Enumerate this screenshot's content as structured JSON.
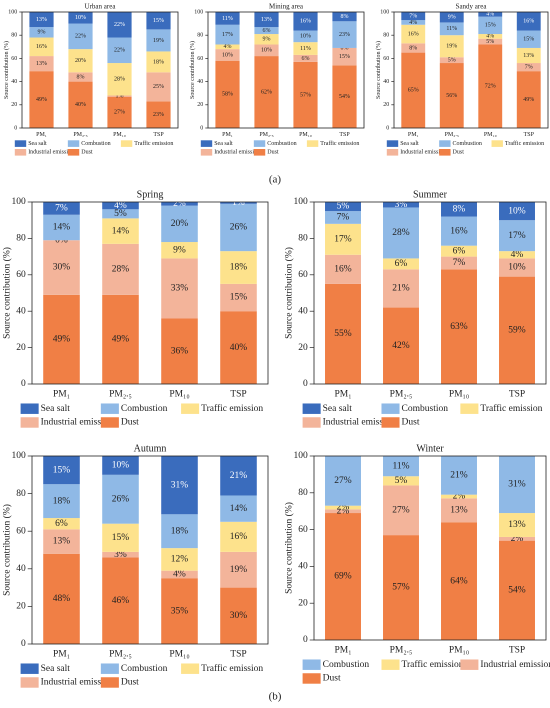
{
  "panel_labels": [
    "(a)",
    "(b)"
  ],
  "chart_data": [
    {
      "type": "bar",
      "stacked": true,
      "title": "Urban area",
      "ylabel": "Source contribution (%)",
      "categories": [
        "PM₁",
        "PM₂.₅",
        "PM₁₀",
        "TSP"
      ],
      "ylim": [
        0,
        100
      ],
      "yticks": [
        0,
        20,
        40,
        60,
        80,
        100
      ],
      "series": [
        {
          "name": "Dust",
          "color": "#f07f45",
          "values": [
            49,
            40,
            27,
            23
          ],
          "value_labels": [
            "49%",
            "40%",
            "27%",
            "23%"
          ]
        },
        {
          "name": "Industrial emission",
          "color": "#f3b49a",
          "values": [
            13,
            8,
            1,
            25
          ],
          "value_labels": [
            "13%",
            "8%",
            "1%",
            "25%"
          ]
        },
        {
          "name": "Traffic emission",
          "color": "#fde28c",
          "values": [
            16,
            20,
            28,
            18
          ],
          "value_labels": [
            "16%",
            "20%",
            "28%",
            "18%"
          ]
        },
        {
          "name": "Combustion",
          "color": "#8fb9e6",
          "values": [
            9,
            22,
            22,
            19
          ],
          "value_labels": [
            "9%",
            "22%",
            "22%",
            "19%"
          ]
        },
        {
          "name": "Sea salt",
          "color": "#3a6cbd",
          "values": [
            13,
            10,
            22,
            15
          ],
          "value_labels": [
            "13%",
            "10%",
            "22%",
            "15%"
          ]
        }
      ]
    },
    {
      "type": "bar",
      "stacked": true,
      "title": "Mining area",
      "ylabel": "Source contribution (%)",
      "categories": [
        "PM₁",
        "PM₂.₅",
        "PM₁₀",
        "TSP"
      ],
      "ylim": [
        0,
        100
      ],
      "yticks": [
        0,
        20,
        40,
        60,
        80,
        100
      ],
      "series": [
        {
          "name": "Dust",
          "color": "#f07f45",
          "values": [
            58,
            62,
            57,
            54
          ],
          "value_labels": [
            "58%",
            "62%",
            "57%",
            "54%"
          ]
        },
        {
          "name": "Industrial emission",
          "color": "#f3b49a",
          "values": [
            10,
            10,
            6,
            15
          ],
          "value_labels": [
            "10%",
            "10%",
            "6%",
            "15%"
          ]
        },
        {
          "name": "Traffic emission",
          "color": "#fde28c",
          "values": [
            4,
            9,
            11,
            0
          ],
          "value_labels": [
            "4%",
            "9%",
            "11%",
            "0%"
          ]
        },
        {
          "name": "Combustion",
          "color": "#8fb9e6",
          "values": [
            17,
            6,
            10,
            23
          ],
          "value_labels": [
            "17%",
            "6%",
            "10%",
            "23%"
          ]
        },
        {
          "name": "Sea salt",
          "color": "#3a6cbd",
          "values": [
            11,
            13,
            16,
            8
          ],
          "value_labels": [
            "11%",
            "13%",
            "16%",
            "8%"
          ]
        }
      ]
    },
    {
      "type": "bar",
      "stacked": true,
      "title": "Sandy area",
      "ylabel": "Source contribution (%)",
      "categories": [
        "PM₁",
        "PM₂.₅",
        "PM₁₀",
        "TSP"
      ],
      "ylim": [
        0,
        100
      ],
      "yticks": [
        0,
        20,
        40,
        60,
        80,
        100
      ],
      "series": [
        {
          "name": "Dust",
          "color": "#f07f45",
          "values": [
            65,
            56,
            72,
            49
          ],
          "value_labels": [
            "65%",
            "56%",
            "72%",
            "49%"
          ]
        },
        {
          "name": "Industrial emission",
          "color": "#f3b49a",
          "values": [
            8,
            5,
            5,
            7
          ],
          "value_labels": [
            "8%",
            "5%",
            "5%",
            "7%"
          ]
        },
        {
          "name": "Traffic emission",
          "color": "#fde28c",
          "values": [
            16,
            19,
            4,
            13
          ],
          "value_labels": [
            "16%",
            "19%",
            "4%",
            "13%"
          ]
        },
        {
          "name": "Combustion",
          "color": "#8fb9e6",
          "values": [
            4,
            11,
            15,
            15
          ],
          "value_labels": [
            "4%",
            "11%",
            "15%",
            "15%"
          ]
        },
        {
          "name": "Sea salt",
          "color": "#3a6cbd",
          "values": [
            7,
            9,
            4,
            16
          ],
          "value_labels": [
            "7%",
            "9%",
            "4%",
            "16%"
          ]
        }
      ]
    },
    {
      "type": "bar",
      "stacked": true,
      "title": "Spring",
      "ylabel": "Source contribution (%)",
      "categories": [
        "PM₁",
        "PM₂.₅",
        "PM₁₀",
        "TSP"
      ],
      "ylim": [
        0,
        100
      ],
      "yticks": [
        0,
        20,
        40,
        60,
        80,
        100
      ],
      "series": [
        {
          "name": "Dust",
          "color": "#f07f45",
          "values": [
            49,
            49,
            36,
            40
          ],
          "value_labels": [
            "49%",
            "49%",
            "36%",
            "40%"
          ]
        },
        {
          "name": "Industrial emission",
          "color": "#f3b49a",
          "values": [
            30,
            28,
            33,
            15
          ],
          "value_labels": [
            "30%",
            "28%",
            "33%",
            "15%"
          ]
        },
        {
          "name": "Traffic emission",
          "color": "#fde28c",
          "values": [
            0,
            14,
            9,
            18
          ],
          "value_labels": [
            "0%",
            "14%",
            "9%",
            "18%"
          ]
        },
        {
          "name": "Combustion",
          "color": "#8fb9e6",
          "values": [
            14,
            5,
            20,
            26
          ],
          "value_labels": [
            "14%",
            "5%",
            "20%",
            "26%"
          ]
        },
        {
          "name": "Sea salt",
          "color": "#3a6cbd",
          "values": [
            7,
            4,
            2,
            1
          ],
          "value_labels": [
            "7%",
            "4%",
            "2%",
            "1%"
          ]
        }
      ]
    },
    {
      "type": "bar",
      "stacked": true,
      "title": "Summer",
      "ylabel": "Source contribution (%)",
      "categories": [
        "PM₁",
        "PM₂.₅",
        "PM₁₀",
        "TSP"
      ],
      "ylim": [
        0,
        100
      ],
      "yticks": [
        0,
        20,
        40,
        60,
        80,
        100
      ],
      "series": [
        {
          "name": "Dust",
          "color": "#f07f45",
          "values": [
            55,
            42,
            63,
            59
          ],
          "value_labels": [
            "55%",
            "42%",
            "63%",
            "59%"
          ]
        },
        {
          "name": "Industrial emission",
          "color": "#f3b49a",
          "values": [
            16,
            21,
            7,
            10
          ],
          "value_labels": [
            "16%",
            "21%",
            "7%",
            "10%"
          ]
        },
        {
          "name": "Traffic emission",
          "color": "#fde28c",
          "values": [
            17,
            6,
            6,
            4
          ],
          "value_labels": [
            "17%",
            "6%",
            "6%",
            "4%"
          ]
        },
        {
          "name": "Combustion",
          "color": "#8fb9e6",
          "values": [
            7,
            28,
            16,
            17
          ],
          "value_labels": [
            "7%",
            "28%",
            "16%",
            "17%"
          ]
        },
        {
          "name": "Sea salt",
          "color": "#3a6cbd",
          "values": [
            5,
            3,
            8,
            10
          ],
          "value_labels": [
            "5%",
            "3%",
            "8%",
            "10%"
          ]
        }
      ]
    },
    {
      "type": "bar",
      "stacked": true,
      "title": "Autumn",
      "ylabel": "Source contribution (%)",
      "categories": [
        "PM₁",
        "PM₂.₅",
        "PM₁₀",
        "TSP"
      ],
      "ylim": [
        0,
        100
      ],
      "yticks": [
        0,
        20,
        40,
        60,
        80,
        100
      ],
      "series": [
        {
          "name": "Dust",
          "color": "#f07f45",
          "values": [
            48,
            46,
            35,
            30
          ],
          "value_labels": [
            "48%",
            "46%",
            "35%",
            "30%"
          ]
        },
        {
          "name": "Industrial emission",
          "color": "#f3b49a",
          "values": [
            13,
            3,
            4,
            19
          ],
          "value_labels": [
            "13%",
            "3%",
            "4%",
            "19%"
          ]
        },
        {
          "name": "Traffic emission",
          "color": "#fde28c",
          "values": [
            6,
            15,
            12,
            16
          ],
          "value_labels": [
            "6%",
            "15%",
            "12%",
            "16%"
          ]
        },
        {
          "name": "Combustion",
          "color": "#8fb9e6",
          "values": [
            18,
            26,
            18,
            14
          ],
          "value_labels": [
            "18%",
            "26%",
            "18%",
            "14%"
          ]
        },
        {
          "name": "Sea salt",
          "color": "#3a6cbd",
          "values": [
            15,
            10,
            31,
            21
          ],
          "value_labels": [
            "15%",
            "10%",
            "31%",
            "21%"
          ]
        }
      ]
    },
    {
      "type": "bar",
      "stacked": true,
      "title": "Winter",
      "ylabel": "Source contribution (%)",
      "categories": [
        "PM₁",
        "PM₂.₅",
        "PM₁₀",
        "TSP"
      ],
      "ylim": [
        0,
        100
      ],
      "yticks": [
        0,
        20,
        40,
        60,
        80,
        100
      ],
      "series": [
        {
          "name": "Dust",
          "color": "#f07f45",
          "values": [
            69,
            57,
            64,
            54
          ],
          "value_labels": [
            "69%",
            "57%",
            "64%",
            "54%"
          ]
        },
        {
          "name": "Industrial emission",
          "color": "#f3b49a",
          "values": [
            2,
            27,
            13,
            2
          ],
          "value_labels": [
            "2%",
            "27%",
            "13%",
            "2%"
          ]
        },
        {
          "name": "Traffic emission",
          "color": "#fde28c",
          "values": [
            2,
            5,
            2,
            13
          ],
          "value_labels": [
            "2%",
            "5%",
            "2%",
            "13%"
          ]
        },
        {
          "name": "Combustion",
          "color": "#8fb9e6",
          "values": [
            27,
            11,
            21,
            31
          ],
          "value_labels": [
            "27%",
            "11%",
            "21%",
            "31%"
          ]
        }
      ]
    }
  ]
}
